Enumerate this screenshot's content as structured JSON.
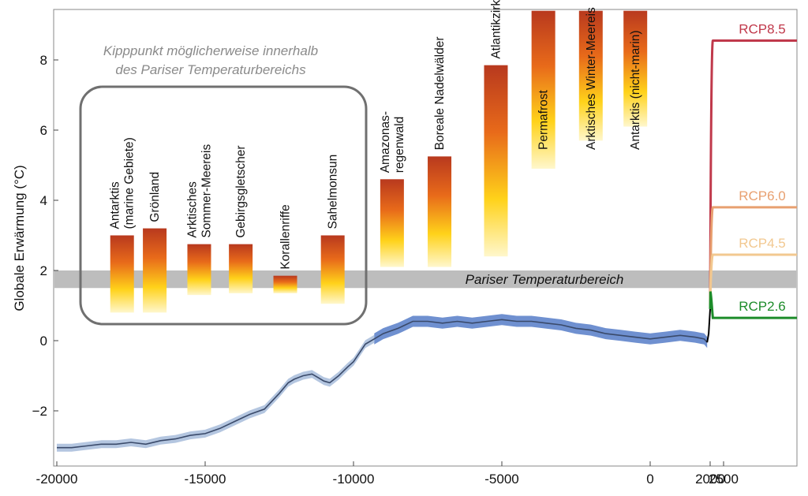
{
  "chart_data": {
    "type": "line",
    "title": "",
    "ylabel": "Globale Erwärmung (°C)",
    "xlabel": "",
    "ylim": [
      -3.6,
      9.5
    ],
    "x_ticks": [
      {
        "value": -20000,
        "label": "-20000"
      },
      {
        "value": -15000,
        "label": "-15000"
      },
      {
        "value": -10000,
        "label": "-10000"
      },
      {
        "value": -5000,
        "label": "-5000"
      },
      {
        "value": 0,
        "label": "0"
      },
      {
        "value": 2000,
        "label": "2000"
      },
      {
        "value": 2500,
        "label": "2500"
      }
    ],
    "y_ticks": [
      {
        "value": -2,
        "label": "−2"
      },
      {
        "value": 0,
        "label": "0"
      },
      {
        "value": 2,
        "label": "2"
      },
      {
        "value": 4,
        "label": "4"
      },
      {
        "value": 6,
        "label": "6"
      },
      {
        "value": 8,
        "label": "8"
      }
    ],
    "paris_band": {
      "label": "Pariser Temperaturbereich",
      "low": 1.5,
      "high": 2.0
    },
    "box_note": [
      "Kipppunkt möglicherweise innerhalb",
      "des Pariser Temperaturbereichs"
    ],
    "tipping_elements": [
      {
        "lines": [
          "Antarktis",
          "(marine Gebiete)"
        ],
        "low": 0.8,
        "high": 3.0,
        "x": -17800
      },
      {
        "lines": [
          "Grönland"
        ],
        "low": 0.8,
        "high": 3.2,
        "x": -16700
      },
      {
        "lines": [
          "Arktisches",
          "Sommer-Meereis"
        ],
        "low": 1.3,
        "high": 2.75,
        "x": -15200
      },
      {
        "lines": [
          "Gebirgsgletscher"
        ],
        "low": 1.35,
        "high": 2.75,
        "x": -13800
      },
      {
        "lines": [
          "Korallenriffe"
        ],
        "low": 1.35,
        "high": 1.85,
        "x": -12300
      },
      {
        "lines": [
          "Sahelmonsun"
        ],
        "low": 1.05,
        "high": 3.0,
        "x": -10700
      },
      {
        "lines": [
          "Amazonas-",
          "regenwald"
        ],
        "low": 2.1,
        "high": 4.6,
        "x": -8700
      },
      {
        "lines": [
          "Boreale Nadelwälder"
        ],
        "low": 2.1,
        "high": 5.25,
        "x": -7100
      },
      {
        "lines": [
          "Atlantikzirkulation"
        ],
        "low": 2.4,
        "high": 7.85,
        "x": -5200
      },
      {
        "lines": [
          "Permafrost"
        ],
        "low": 4.9,
        "high": 9.4,
        "x": -3600
      },
      {
        "lines": [
          "Arktisches Winter-Meereis"
        ],
        "low": 5.7,
        "high": 9.4,
        "x": -2000
      },
      {
        "lines": [
          "Antarktis (nicht-marin)"
        ],
        "low": 6.1,
        "high": 9.4,
        "x": -500
      }
    ],
    "series": [
      {
        "name": "",
        "x": [
          -20000,
          -19500,
          -19000,
          -18500,
          -18000,
          -17500,
          -17000,
          -16500,
          -16000,
          -15500,
          -15000,
          -14500,
          -14000,
          -13500,
          -13000,
          -12500,
          -12200,
          -12000,
          -11700,
          -11400,
          -11200,
          -11000,
          -10800,
          -10500,
          -10200,
          -10000,
          -9800,
          -9600,
          -9300,
          -9000,
          -8500,
          -8000,
          -7500,
          -7000,
          -6500,
          -6000,
          -5500,
          -5000,
          -4500,
          -4000,
          -3500,
          -3000,
          -2500,
          -2000,
          -1500,
          -1000,
          -500,
          0,
          500,
          1000,
          1500,
          1800,
          1850,
          1900
        ],
        "y": [
          -3.05,
          -3.05,
          -3.0,
          -2.95,
          -2.95,
          -2.9,
          -2.95,
          -2.85,
          -2.8,
          -2.7,
          -2.65,
          -2.5,
          -2.3,
          -2.1,
          -1.95,
          -1.5,
          -1.2,
          -1.1,
          -1.0,
          -0.95,
          -1.05,
          -1.15,
          -1.2,
          -1.0,
          -0.75,
          -0.6,
          -0.35,
          -0.1,
          0.05,
          0.2,
          0.35,
          0.55,
          0.55,
          0.5,
          0.55,
          0.5,
          0.55,
          0.6,
          0.55,
          0.55,
          0.5,
          0.45,
          0.35,
          0.3,
          0.2,
          0.15,
          0.1,
          0.05,
          0.1,
          0.15,
          0.1,
          0.05,
          0.0,
          -0.05
        ]
      }
    ],
    "rcp": [
      {
        "name": "RCP8.5",
        "color": "#c0394b",
        "level": 8.55
      },
      {
        "name": "RCP6.0",
        "color": "#e8a070",
        "level": 3.8
      },
      {
        "name": "RCP4.5",
        "color": "#f2c890",
        "level": 2.45
      },
      {
        "name": "RCP2.6",
        "color": "#1d8c2a",
        "level": 0.65
      }
    ],
    "colors": {
      "band": "#bdbdbd",
      "series_line": "#1f3f7a",
      "series_uncertainty": "#6f90d0",
      "early_uncertainty": "#b4c6e0",
      "bar_top": "#b03a20",
      "bar_mid": "#f5a020",
      "bar_bottom": "#ffffff",
      "box_stroke": "#707070"
    }
  }
}
